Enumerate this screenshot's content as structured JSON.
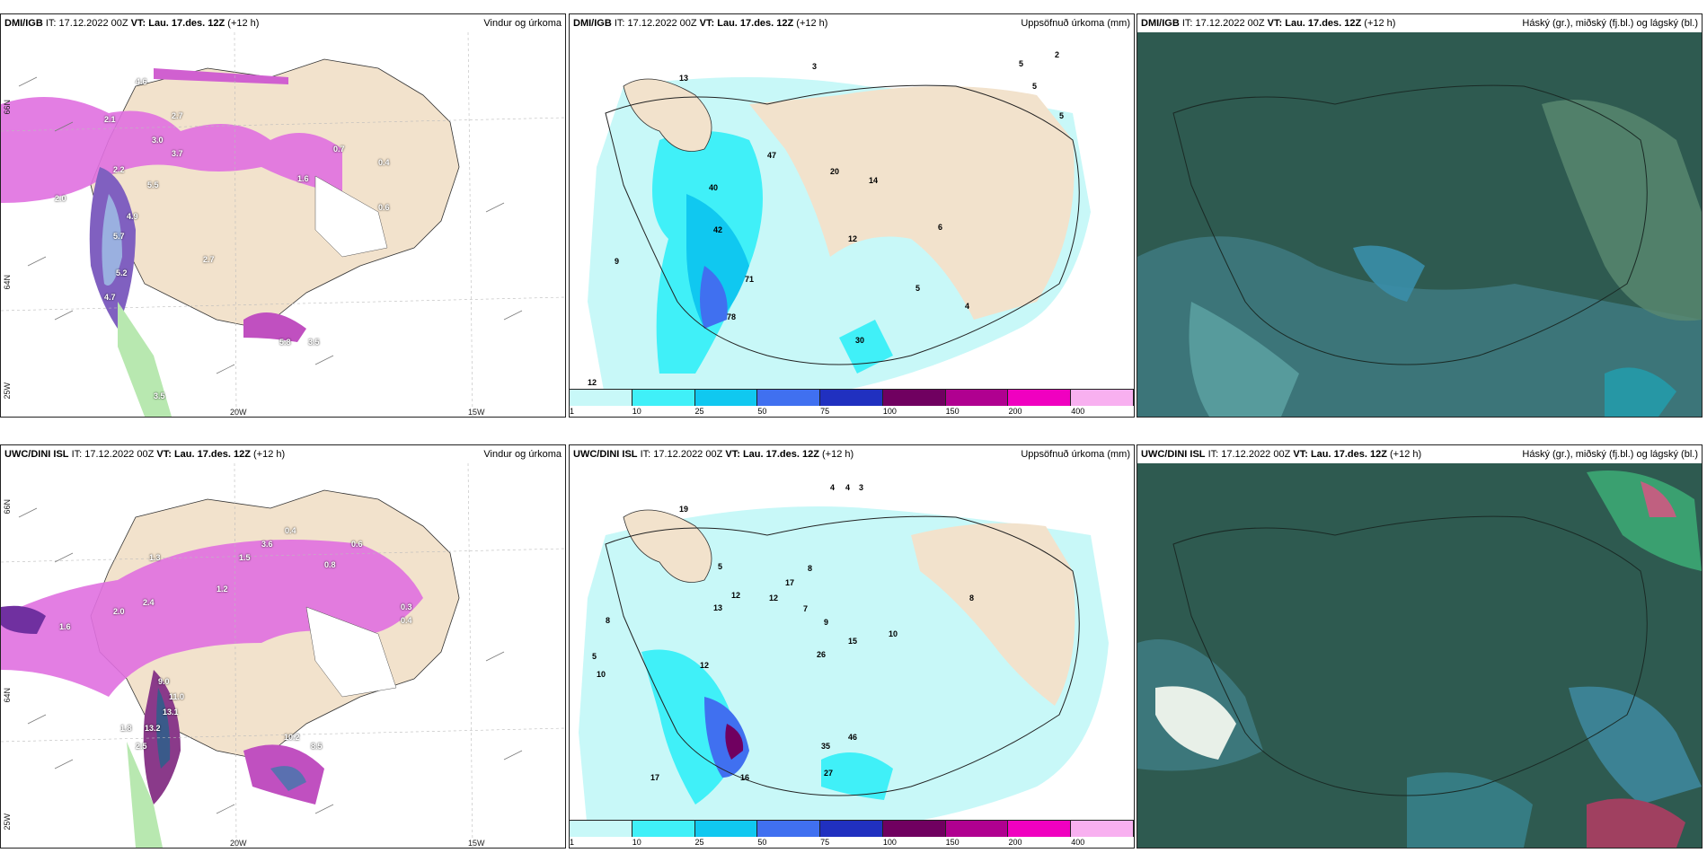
{
  "panels": [
    {
      "id": "p1",
      "model": "DMI/IGB",
      "it_label": "IT:",
      "it": "17.12.2022 00Z",
      "vt_label": "VT:",
      "vt": "Lau. 17.des. 12Z",
      "lead": "(+12 h)",
      "title": "Vindur og úrkoma"
    },
    {
      "id": "p2",
      "model": "DMI/IGB",
      "it_label": "IT:",
      "it": "17.12.2022 00Z",
      "vt_label": "VT:",
      "vt": "Lau. 17.des. 12Z",
      "lead": "(+12 h)",
      "title": "Uppsöfnuð úrkoma (mm)"
    },
    {
      "id": "p3",
      "model": "DMI/IGB",
      "it_label": "IT:",
      "it": "17.12.2022 00Z",
      "vt_label": "VT:",
      "vt": "Lau. 17.des. 12Z",
      "lead": "(+12 h)",
      "title": "Háský (gr.), miðský (fj.bl.) og lágský (bl.)"
    },
    {
      "id": "p4",
      "model": "UWC/DINI ISL",
      "it_label": "IT:",
      "it": "17.12.2022 00Z",
      "vt_label": "VT:",
      "vt": "Lau. 17.des. 12Z",
      "lead": "(+12 h)",
      "title": "Vindur og úrkoma"
    },
    {
      "id": "p5",
      "model": "UWC/DINI ISL",
      "it_label": "IT:",
      "it": "17.12.2022 00Z",
      "vt_label": "VT:",
      "vt": "Lau. 17.des. 12Z",
      "lead": "(+12 h)",
      "title": "Uppsöfnuð úrkoma (mm)"
    },
    {
      "id": "p6",
      "model": "UWC/DINI ISL",
      "it_label": "IT:",
      "it": "17.12.2022 00Z",
      "vt_label": "VT:",
      "vt": "Lau. 17.des. 12Z",
      "lead": "(+12 h)",
      "title": "Háský (gr.), miðský (fj.bl.) og lágský (bl.)"
    }
  ],
  "axes": {
    "lat66": "66N",
    "lat64": "64N",
    "lon20": "20W",
    "lon15": "15W",
    "lon25": "25W"
  },
  "legend": {
    "labels": [
      "1",
      "10",
      "25",
      "50",
      "75",
      "100",
      "150",
      "200",
      "400"
    ],
    "colors": [
      "#c8f8f8",
      "#40f0f8",
      "#10c8f0",
      "#4070f0",
      "#2030c0",
      "#700060",
      "#b00090",
      "#f000c0",
      "#f8b0f0"
    ]
  },
  "precip_labels_p2": [
    "13",
    "3",
    "2",
    "5",
    "5",
    "5",
    "47",
    "20",
    "14",
    "40",
    "42",
    "12",
    "71",
    "78",
    "9",
    "6",
    "5",
    "4",
    "12",
    "30"
  ],
  "precip_labels_p5": [
    "4",
    "4",
    "3",
    "19",
    "5",
    "12",
    "13",
    "8",
    "8",
    "7",
    "9",
    "12",
    "17",
    "12",
    "10",
    "15",
    "26",
    "46",
    "35",
    "27",
    "16",
    "17",
    "5",
    "8",
    "10"
  ],
  "wind_labels_p1": [
    "4.6",
    "2.1",
    "2.7",
    "3.0",
    "3.7",
    "2.2",
    "5.5",
    "4.9",
    "2.0",
    "5.7",
    "5.2",
    "4.7",
    "2.7",
    "1.6",
    "0.7",
    "0.4",
    "0.6",
    "5.8",
    "3.5",
    "3.5"
  ],
  "wind_labels_p4": [
    "1.6",
    "2.0",
    "2.4",
    "1.3",
    "3.6",
    "0.4",
    "0.6",
    "1.2",
    "0.8",
    "9.0",
    "11.0",
    "13.1",
    "13.2",
    "1.8",
    "2.5",
    "10.2",
    "8.5",
    "0.3",
    "0.4",
    "1.5"
  ]
}
